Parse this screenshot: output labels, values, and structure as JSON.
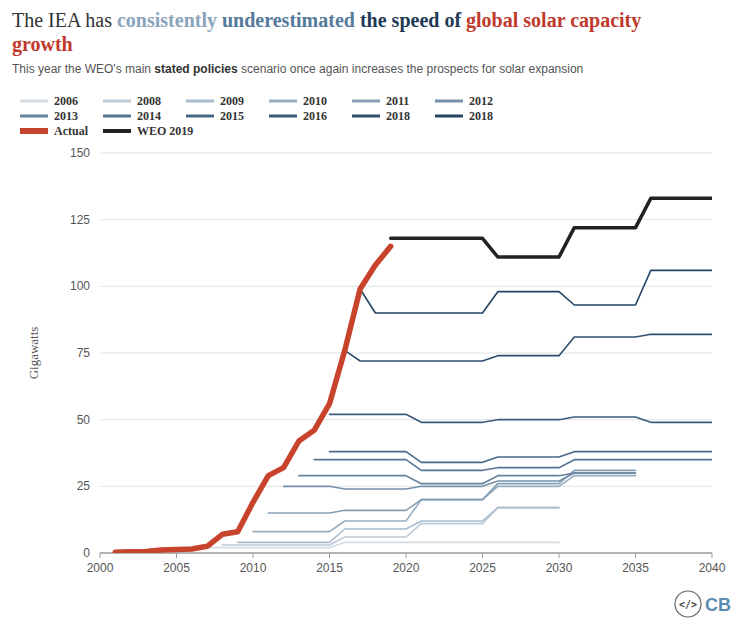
{
  "chart_data": {
    "type": "line",
    "title": "The IEA has consistently underestimated the speed of global solar capacity growth",
    "title_highlights": [
      {
        "text": "consistently",
        "color": "#8aa4bc"
      },
      {
        "text": "underestimated",
        "color": "#557a9c"
      },
      {
        "text": "the speed of",
        "color": "#1e3a56"
      },
      {
        "text": "global solar capacity growth",
        "color": "#c0392b"
      }
    ],
    "subtitle": "This year the WEO's main stated policies scenario once again increases the prospects for solar expansion",
    "subtitle_emphasis": "stated policies",
    "y_label": "Gigawatts",
    "annotations": [
      "</>",
      "CB"
    ],
    "x": [
      2001,
      2002,
      2003,
      2004,
      2005,
      2006,
      2007,
      2008,
      2009,
      2010,
      2011,
      2012,
      2013,
      2014,
      2015,
      2016,
      2017,
      2018,
      2019,
      2020,
      2021,
      2022,
      2023,
      2024,
      2025,
      2026,
      2027,
      2028,
      2029,
      2030,
      2031,
      2032,
      2033,
      2034,
      2035,
      2036,
      2037,
      2038,
      2039,
      2040
    ],
    "xlim": [
      2000,
      2040
    ],
    "xticks": [
      2000,
      2005,
      2010,
      2015,
      2020,
      2025,
      2030,
      2035,
      2040
    ],
    "ylim": [
      0,
      150
    ],
    "yticks": [
      0,
      25,
      50,
      75,
      100,
      125,
      150
    ],
    "grid": true,
    "legend": "top",
    "series": [
      {
        "name": "2006",
        "color": "#d3dbe3",
        "values": [
          null,
          null,
          null,
          null,
          null,
          2,
          2,
          2,
          2,
          2,
          2,
          2,
          2,
          2,
          2,
          4,
          4,
          4,
          4,
          4,
          4,
          4,
          4,
          4,
          4,
          4,
          4,
          4,
          4,
          4,
          null,
          null,
          null,
          null,
          null,
          null,
          null,
          null,
          null,
          null
        ]
      },
      {
        "name": "2008",
        "color": "#bccad6",
        "values": [
          null,
          null,
          null,
          null,
          null,
          null,
          null,
          3,
          3,
          3,
          3,
          3,
          3,
          3,
          3,
          6,
          6,
          6,
          6,
          6,
          11,
          11,
          11,
          11,
          11,
          17,
          17,
          17,
          17,
          17,
          null,
          null,
          null,
          null,
          null,
          null,
          null,
          null,
          null,
          null
        ]
      },
      {
        "name": "2009",
        "color": "#a9bbcb",
        "values": [
          null,
          null,
          null,
          null,
          null,
          null,
          null,
          null,
          4,
          4,
          4,
          4,
          4,
          4,
          4,
          9,
          9,
          9,
          9,
          9,
          12,
          12,
          12,
          12,
          12,
          17,
          17,
          17,
          17,
          17,
          null,
          null,
          null,
          null,
          null,
          null,
          null,
          null,
          null,
          null
        ]
      },
      {
        "name": "2010",
        "color": "#97adc0",
        "values": [
          null,
          null,
          null,
          null,
          null,
          null,
          null,
          null,
          null,
          8,
          8,
          8,
          8,
          8,
          8,
          12,
          12,
          12,
          12,
          12,
          20,
          20,
          20,
          20,
          20,
          25,
          25,
          25,
          25,
          25,
          29,
          29,
          29,
          29,
          29,
          null,
          null,
          null,
          null,
          null
        ]
      },
      {
        "name": "2011",
        "color": "#869fb5",
        "values": [
          null,
          null,
          null,
          null,
          null,
          null,
          null,
          null,
          null,
          null,
          15,
          15,
          15,
          15,
          15,
          16,
          16,
          16,
          16,
          16,
          20,
          20,
          20,
          20,
          20,
          26,
          26,
          26,
          26,
          26,
          31,
          31,
          31,
          31,
          31,
          null,
          null,
          null,
          null,
          null
        ]
      },
      {
        "name": "2012",
        "color": "#7591aa",
        "values": [
          null,
          null,
          null,
          null,
          null,
          null,
          null,
          null,
          null,
          null,
          null,
          25,
          25,
          25,
          25,
          24,
          24,
          24,
          24,
          24,
          25,
          25,
          25,
          25,
          25,
          27,
          27,
          27,
          27,
          27,
          30,
          30,
          30,
          30,
          30,
          null,
          null,
          null,
          null,
          null
        ]
      },
      {
        "name": "2013",
        "color": "#65839f",
        "values": [
          null,
          null,
          null,
          null,
          null,
          null,
          null,
          null,
          null,
          null,
          null,
          null,
          29,
          29,
          29,
          29,
          29,
          29,
          29,
          29,
          26,
          26,
          26,
          26,
          26,
          29,
          29,
          29,
          29,
          29,
          30,
          30,
          30,
          30,
          30,
          null,
          null,
          null,
          null,
          null
        ]
      },
      {
        "name": "2014",
        "color": "#567594",
        "values": [
          null,
          null,
          null,
          null,
          null,
          null,
          null,
          null,
          null,
          null,
          null,
          null,
          null,
          35,
          35,
          35,
          35,
          35,
          35,
          35,
          31,
          31,
          31,
          31,
          31,
          32,
          32,
          32,
          32,
          32,
          35,
          35,
          35,
          35,
          35,
          35,
          35,
          35,
          35,
          35
        ]
      },
      {
        "name": "2015",
        "color": "#486888",
        "values": [
          null,
          null,
          null,
          null,
          null,
          null,
          null,
          null,
          null,
          null,
          null,
          null,
          null,
          null,
          38,
          38,
          38,
          38,
          38,
          38,
          34,
          34,
          34,
          34,
          34,
          36,
          36,
          36,
          36,
          36,
          38,
          38,
          38,
          38,
          38,
          38,
          38,
          38,
          38,
          38
        ]
      },
      {
        "name": "2016",
        "color": "#3b5b7c",
        "values": [
          null,
          null,
          null,
          null,
          null,
          null,
          null,
          null,
          null,
          null,
          null,
          null,
          null,
          null,
          52,
          52,
          52,
          52,
          52,
          52,
          49,
          49,
          49,
          49,
          49,
          50,
          50,
          50,
          50,
          50,
          51,
          51,
          51,
          51,
          51,
          49,
          49,
          49,
          49,
          49
        ]
      },
      {
        "name": "2018",
        "color": "#2f4f70",
        "values": [
          null,
          null,
          null,
          null,
          null,
          null,
          null,
          null,
          null,
          null,
          null,
          null,
          null,
          null,
          null,
          76,
          72,
          72,
          72,
          72,
          72,
          72,
          72,
          72,
          72,
          74,
          74,
          74,
          74,
          74,
          81,
          81,
          81,
          81,
          81,
          82,
          82,
          82,
          82,
          82
        ]
      },
      {
        "name": "2018",
        "color": "#244464",
        "values": [
          null,
          null,
          null,
          null,
          null,
          null,
          null,
          null,
          null,
          null,
          null,
          null,
          null,
          null,
          null,
          null,
          99,
          90,
          90,
          90,
          90,
          90,
          90,
          90,
          90,
          98,
          98,
          98,
          98,
          98,
          93,
          93,
          93,
          93,
          93,
          106,
          106,
          106,
          106,
          106
        ]
      },
      {
        "name": "Actual",
        "color": "#c8432b",
        "values": [
          0.3,
          0.5,
          0.6,
          1.1,
          1.3,
          1.5,
          2.5,
          7,
          8,
          19,
          29,
          32,
          42,
          46,
          56,
          76,
          99,
          108,
          115,
          null,
          null,
          null,
          null,
          null,
          null,
          null,
          null,
          null,
          null,
          null,
          null,
          null,
          null,
          null,
          null,
          null,
          null,
          null,
          null,
          null
        ]
      },
      {
        "name": "WEO 2019",
        "color": "#222222",
        "values": [
          null,
          null,
          null,
          null,
          null,
          null,
          null,
          null,
          null,
          null,
          null,
          null,
          null,
          null,
          null,
          null,
          null,
          null,
          118,
          118,
          118,
          118,
          118,
          118,
          118,
          111,
          111,
          111,
          111,
          111,
          122,
          122,
          122,
          122,
          122,
          133,
          133,
          133,
          133,
          133
        ]
      }
    ]
  }
}
